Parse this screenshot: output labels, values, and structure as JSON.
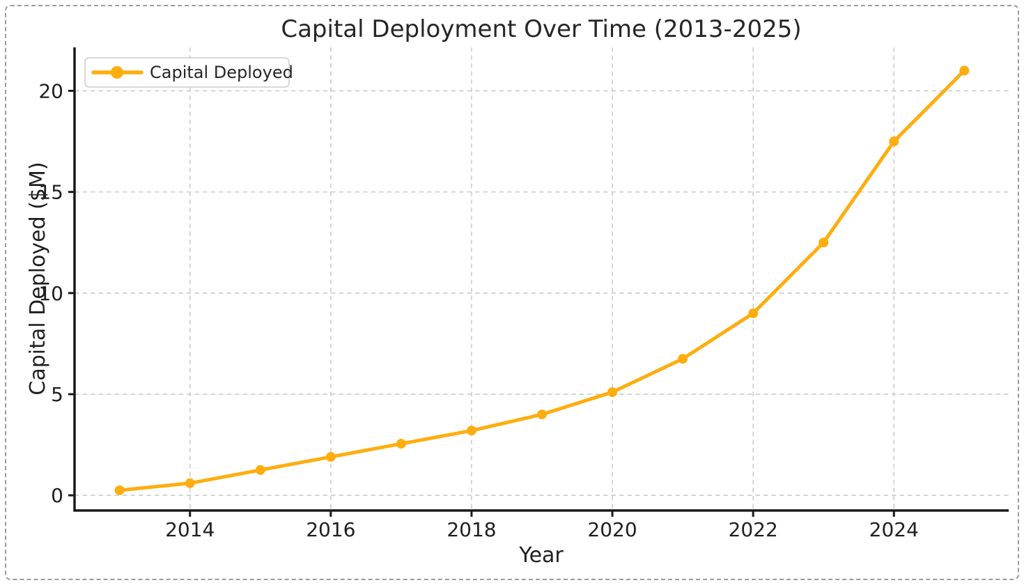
{
  "page": {
    "background": "#ffffff",
    "frame_color": "#9b9b9b"
  },
  "chart_data": {
    "type": "line",
    "title": "Capital Deployment Over Time (2013-2025)",
    "xlabel": "Year",
    "ylabel": "Capital Deployed ($M)",
    "x": [
      2013,
      2014,
      2015,
      2016,
      2017,
      2018,
      2019,
      2020,
      2021,
      2022,
      2023,
      2024,
      2025
    ],
    "series": [
      {
        "name": "Capital Deployed",
        "color": "#ffad0e",
        "marker": "circle",
        "values": [
          0.25,
          0.6,
          1.25,
          1.9,
          2.55,
          3.2,
          4.0,
          5.1,
          6.75,
          9.0,
          12.5,
          17.5,
          21.0
        ]
      }
    ],
    "xticks": [
      2014,
      2016,
      2018,
      2020,
      2022,
      2024
    ],
    "yticks": [
      0,
      5,
      10,
      15,
      20
    ],
    "xlim": [
      2012.36,
      2025.63
    ],
    "ylim": [
      -0.75,
      22.15
    ],
    "grid": true,
    "grid_style": "dashed",
    "legend": {
      "position": "upper-left",
      "entries": [
        "Capital Deployed"
      ]
    }
  }
}
